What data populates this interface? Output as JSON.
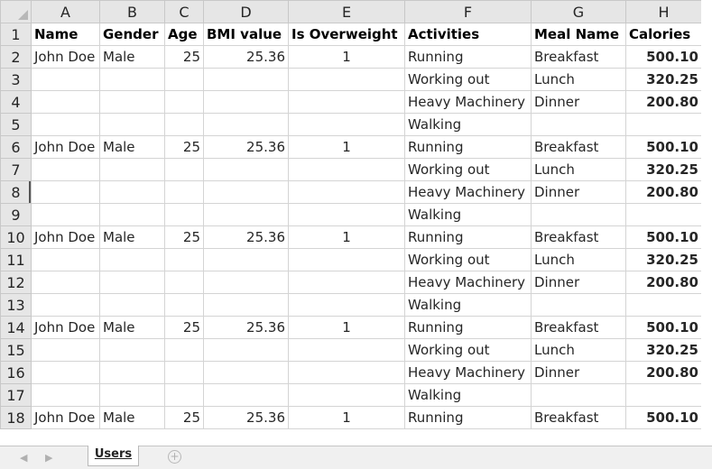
{
  "columns": [
    "A",
    "B",
    "C",
    "D",
    "E",
    "F",
    "G",
    "H"
  ],
  "rows": [
    {
      "n": "1",
      "cells": [
        "Name",
        "Gender",
        "Age",
        "BMI value",
        "Is Overweight",
        "Activities",
        "Meal Name",
        "Calories"
      ]
    },
    {
      "n": "2",
      "cells": [
        "John Doe",
        "Male",
        "25",
        "25.36",
        "1",
        "Running",
        "Breakfast",
        "500.10"
      ]
    },
    {
      "n": "3",
      "cells": [
        "",
        "",
        "",
        "",
        "",
        "Working out",
        "Lunch",
        "320.25"
      ]
    },
    {
      "n": "4",
      "cells": [
        "",
        "",
        "",
        "",
        "",
        "Heavy Machinery",
        "Dinner",
        "200.80"
      ]
    },
    {
      "n": "5",
      "cells": [
        "",
        "",
        "",
        "",
        "",
        "Walking",
        "",
        ""
      ]
    },
    {
      "n": "6",
      "cells": [
        "John Doe",
        "Male",
        "25",
        "25.36",
        "1",
        "Running",
        "Breakfast",
        "500.10"
      ]
    },
    {
      "n": "7",
      "cells": [
        "",
        "",
        "",
        "",
        "",
        "Working out",
        "Lunch",
        "320.25"
      ]
    },
    {
      "n": "8",
      "cells": [
        "",
        "",
        "",
        "",
        "",
        "Heavy Machinery",
        "Dinner",
        "200.80"
      ]
    },
    {
      "n": "9",
      "cells": [
        "",
        "",
        "",
        "",
        "",
        "Walking",
        "",
        ""
      ]
    },
    {
      "n": "10",
      "cells": [
        "John Doe",
        "Male",
        "25",
        "25.36",
        "1",
        "Running",
        "Breakfast",
        "500.10"
      ]
    },
    {
      "n": "11",
      "cells": [
        "",
        "",
        "",
        "",
        "",
        "Working out",
        "Lunch",
        "320.25"
      ]
    },
    {
      "n": "12",
      "cells": [
        "",
        "",
        "",
        "",
        "",
        "Heavy Machinery",
        "Dinner",
        "200.80"
      ]
    },
    {
      "n": "13",
      "cells": [
        "",
        "",
        "",
        "",
        "",
        "Walking",
        "",
        ""
      ]
    },
    {
      "n": "14",
      "cells": [
        "John Doe",
        "Male",
        "25",
        "25.36",
        "1",
        "Running",
        "Breakfast",
        "500.10"
      ]
    },
    {
      "n": "15",
      "cells": [
        "",
        "",
        "",
        "",
        "",
        "Working out",
        "Lunch",
        "320.25"
      ]
    },
    {
      "n": "16",
      "cells": [
        "",
        "",
        "",
        "",
        "",
        "Heavy Machinery",
        "Dinner",
        "200.80"
      ]
    },
    {
      "n": "17",
      "cells": [
        "",
        "",
        "",
        "",
        "",
        "Walking",
        "",
        ""
      ]
    },
    {
      "n": "18",
      "cells": [
        "John Doe",
        "Male",
        "25",
        "25.36",
        "1",
        "Running",
        "Breakfast",
        "500.10"
      ]
    }
  ],
  "tabbar": {
    "sheet_tab": "Users",
    "prev_icon": "◀",
    "next_icon": "▶",
    "add_icon": "+"
  },
  "colors": {
    "header_bg": "#e6e6e6",
    "gridline": "#d4d4d4",
    "tab_accent": "#217346"
  }
}
